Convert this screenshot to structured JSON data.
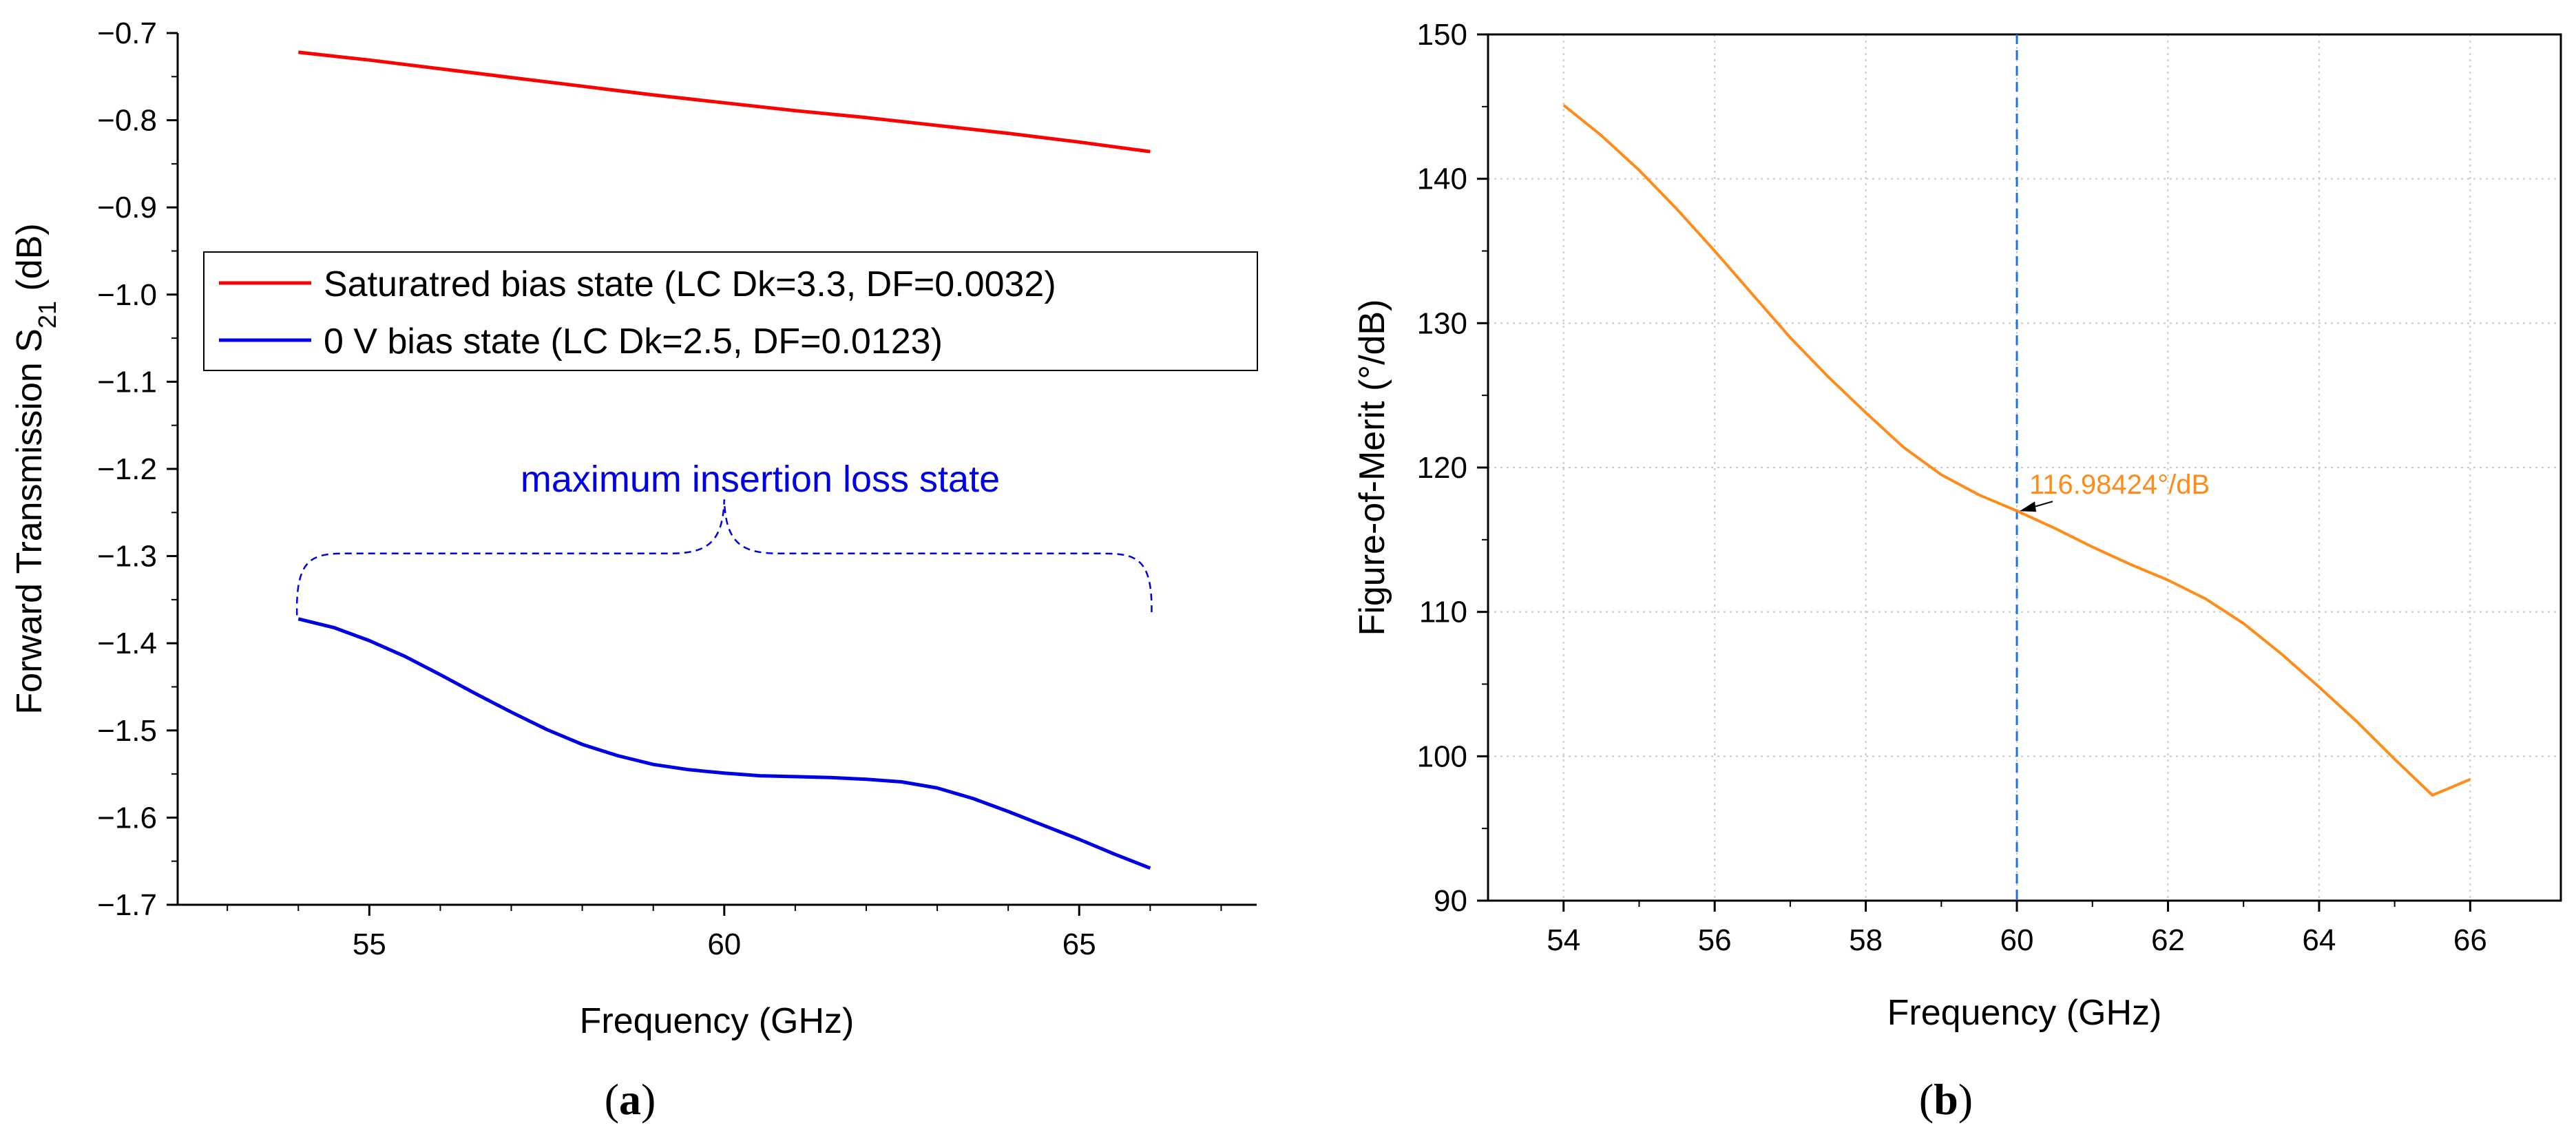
{
  "colors": {
    "saturated": "#ff0000",
    "zero_bias": "#0000e6",
    "fom": "#ff8c1a",
    "marker": "#1a73d9"
  },
  "panels": {
    "a": {
      "open": "(",
      "letter": "a",
      "close": ")"
    },
    "b": {
      "open": "(",
      "letter": "b",
      "close": ")"
    }
  },
  "chart_data": [
    {
      "type": "line",
      "title": "",
      "xlabel": "Frequency (GHz)",
      "ylabel": {
        "main": "Forward Transmission S",
        "sub": "21",
        "unit": " (dB)"
      },
      "xlim": [
        52.3,
        67.5
      ],
      "ylim": [
        -1.7,
        -0.7
      ],
      "xticks": [
        55,
        60,
        65
      ],
      "xtick_labels": [
        "55",
        "60",
        "65"
      ],
      "yticks": [
        -1.7,
        -1.6,
        -1.5,
        -1.4,
        -1.3,
        -1.2,
        -1.1,
        -1.0,
        -0.9,
        -0.8,
        -0.7
      ],
      "ytick_labels": [
        "−1.7",
        "−1.6",
        "−1.5",
        "−1.4",
        "−1.3",
        "−1.2",
        "−1.1",
        "−1.0",
        "−0.9",
        "−0.8",
        "−0.7"
      ],
      "grid": false,
      "legend_position": "upper-middle",
      "series": [
        {
          "name": "Saturatred bias state (LC Dk=3.3, DF=0.0032)",
          "color": "#ff0000",
          "x": [
            54,
            55,
            56,
            57,
            58,
            59,
            60,
            61,
            62,
            63,
            64,
            65,
            66
          ],
          "y": [
            -0.722,
            -0.731,
            -0.741,
            -0.751,
            -0.761,
            -0.771,
            -0.78,
            -0.789,
            -0.797,
            -0.806,
            -0.815,
            -0.825,
            -0.836
          ]
        },
        {
          "name": "0 V bias state (LC Dk=2.5, DF=0.0123)",
          "color": "#0000e6",
          "x": [
            54,
            54.5,
            55,
            55.5,
            56,
            56.5,
            57,
            57.5,
            58,
            58.5,
            59,
            59.5,
            60,
            60.5,
            61,
            61.5,
            62,
            62.5,
            63,
            63.5,
            64,
            64.5,
            65,
            65.5,
            66
          ],
          "y": [
            -1.372,
            -1.382,
            -1.397,
            -1.415,
            -1.436,
            -1.458,
            -1.479,
            -1.499,
            -1.516,
            -1.529,
            -1.539,
            -1.545,
            -1.549,
            -1.552,
            -1.553,
            -1.554,
            -1.556,
            -1.559,
            -1.566,
            -1.578,
            -1.593,
            -1.609,
            -1.625,
            -1.642,
            -1.658
          ]
        }
      ],
      "annotations": [
        {
          "text": "maximum insertion loss state",
          "color": "#0000e6",
          "bracket_x_range": [
            54,
            66
          ],
          "bracket_level": -1.297,
          "bracket_peak_x": 60,
          "bracket_peak_y": -1.235
        }
      ]
    },
    {
      "type": "line",
      "title": "",
      "xlabel": "Frequency (GHz)",
      "ylabel": "Figure-of-Merit (°/dB)",
      "xlim": [
        53,
        67.2
      ],
      "ylim": [
        90,
        150
      ],
      "xticks": [
        54,
        56,
        58,
        60,
        62,
        64,
        66
      ],
      "xtick_labels": [
        "54",
        "56",
        "58",
        "60",
        "62",
        "64",
        "66"
      ],
      "yticks": [
        90,
        100,
        110,
        120,
        130,
        140,
        150
      ],
      "ytick_labels": [
        "90",
        "100",
        "110",
        "120",
        "130",
        "140",
        "150"
      ],
      "grid": true,
      "series": [
        {
          "name": "Figure-of-Merit",
          "color": "#ff8c1a",
          "x": [
            54,
            54.5,
            55,
            55.5,
            56,
            56.5,
            57,
            57.5,
            58,
            58.5,
            59,
            59.5,
            60,
            60.5,
            61,
            61.5,
            62,
            62.5,
            63,
            63.5,
            64,
            64.5,
            65,
            65.5,
            66
          ],
          "y": [
            145.1,
            143.0,
            140.6,
            137.9,
            135.0,
            132.0,
            129.0,
            126.3,
            123.8,
            121.4,
            119.5,
            118.1,
            117.0,
            115.8,
            114.5,
            113.3,
            112.2,
            110.9,
            109.2,
            107.1,
            104.8,
            102.4,
            99.8,
            97.3,
            98.4
          ]
        }
      ],
      "marker": {
        "x": 60,
        "y": 116.98424,
        "color": "#1a73d9"
      },
      "annotations": [
        {
          "text": "116.98424°/dB",
          "x": 60,
          "y": 116.98424,
          "color": "#ff8c1a"
        }
      ]
    }
  ]
}
